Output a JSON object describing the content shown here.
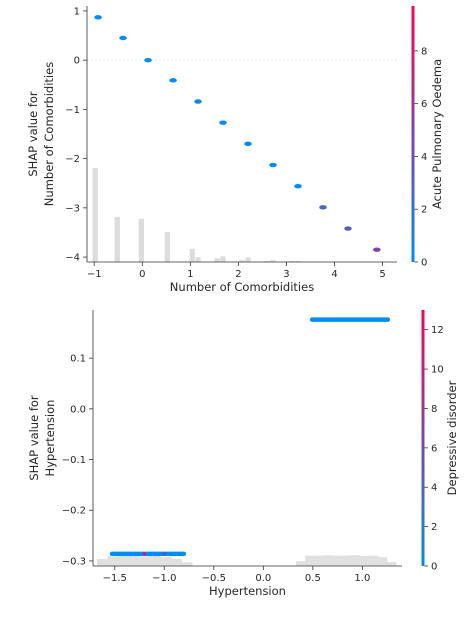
{
  "chart_data": [
    {
      "type": "scatter",
      "title": "",
      "xlabel": "Number of Comorbidities",
      "ylabel_lines": [
        "SHAP value for",
        "Number of Comorbidities"
      ],
      "xlim": [
        -1.15,
        5.3
      ],
      "ylim": [
        -4.1,
        1.1
      ],
      "x_ticks": [
        -1,
        0,
        1,
        2,
        3,
        4,
        5
      ],
      "x_tick_labels": [
        "−1",
        "0",
        "1",
        "2",
        "3",
        "4",
        "5"
      ],
      "y_ticks": [
        -4,
        -3,
        -2,
        -1,
        0,
        1
      ],
      "y_tick_labels": [
        "−4",
        "−3",
        "−2",
        "−1",
        "0",
        "1"
      ],
      "dashed_zero_line": true,
      "colorbar": {
        "label": "Acute Pulmonary Oedema",
        "min": 0,
        "max": 9.7,
        "ticks": [
          0,
          2,
          4,
          6,
          8
        ],
        "tick_labels": [
          "0",
          "2",
          "4",
          "6",
          "8"
        ],
        "low_color": "#008bfb",
        "high_color": "#ff0052"
      },
      "points": [
        {
          "x": -0.92,
          "y": 0.87,
          "c": 0
        },
        {
          "x": -0.4,
          "y": 0.45,
          "c": 0
        },
        {
          "x": 0.12,
          "y": 0.0,
          "c": 0
        },
        {
          "x": 0.64,
          "y": -0.41,
          "c": 0
        },
        {
          "x": 1.16,
          "y": -0.84,
          "c": 0
        },
        {
          "x": 1.68,
          "y": -1.27,
          "c": 0
        },
        {
          "x": 2.2,
          "y": -1.7,
          "c": 0
        },
        {
          "x": 2.72,
          "y": -2.13,
          "c": 0
        },
        {
          "x": 3.24,
          "y": -2.56,
          "c": 0
        },
        {
          "x": 3.76,
          "y": -2.99,
          "c": 2.5
        },
        {
          "x": 4.28,
          "y": -3.42,
          "c": 3.5
        },
        {
          "x": 4.88,
          "y": -3.85,
          "c": 5.0
        }
      ],
      "histogram": {
        "bin_centers": [
          -0.98,
          -0.52,
          -0.02,
          0.52,
          1.04,
          1.16,
          1.56,
          1.68,
          2.08,
          2.2,
          2.6,
          2.72,
          3.12,
          3.24
        ],
        "heights": [
          1.0,
          0.48,
          0.46,
          0.32,
          0.14,
          0.05,
          0.04,
          0.06,
          0.02,
          0.05,
          0.01,
          0.02,
          0.01,
          0.01
        ],
        "bin_width": 0.11
      }
    },
    {
      "type": "scatter",
      "title": "",
      "xlabel": "Hypertension",
      "ylabel_lines": [
        "SHAP value for",
        "Hypertension"
      ],
      "xlim": [
        -1.72,
        1.4
      ],
      "ylim": [
        -0.31,
        0.195
      ],
      "x_ticks": [
        -1.5,
        -1.0,
        -0.5,
        0.0,
        0.5,
        1.0
      ],
      "x_tick_labels": [
        "−1.5",
        "−1.0",
        "−0.5",
        "0.0",
        "0.5",
        "1.0"
      ],
      "y_ticks": [
        -0.3,
        -0.2,
        -0.1,
        0.0,
        0.1
      ],
      "y_tick_labels": [
        "−0.3",
        "−0.2",
        "−0.1",
        "0.0",
        "0.1"
      ],
      "dashed_zero_line": false,
      "colorbar": {
        "label": "Depressive disorder",
        "min": 0,
        "max": 13,
        "ticks": [
          0,
          2,
          4,
          6,
          8,
          10,
          12
        ],
        "tick_labels": [
          "0",
          "2",
          "4",
          "6",
          "8",
          "10",
          "12"
        ],
        "low_color": "#008bfb",
        "high_color": "#ff0052"
      },
      "bands": [
        {
          "x_start": -1.55,
          "x_end": -0.78,
          "y": -0.286,
          "c": 0
        },
        {
          "x_start": 0.47,
          "x_end": 1.28,
          "y": 0.176,
          "c": 0
        }
      ],
      "highlight_points": [
        {
          "x": -1.2,
          "y": -0.286,
          "c": 10
        },
        {
          "x": -1.0,
          "y": -0.286,
          "c": 5
        }
      ],
      "histogram": {
        "segments": [
          {
            "x_start": -1.68,
            "x_end": -0.72,
            "heights": [
              0.55,
              0.9,
              1.0,
              0.95,
              0.9,
              1.0,
              0.85,
              0.6,
              0.3
            ]
          },
          {
            "x_start": 0.33,
            "x_end": 1.34,
            "heights": [
              0.45,
              1.0,
              1.0,
              1.05,
              1.0,
              1.0,
              1.05,
              0.95,
              1.0,
              0.8,
              0.35
            ]
          }
        ]
      }
    }
  ]
}
